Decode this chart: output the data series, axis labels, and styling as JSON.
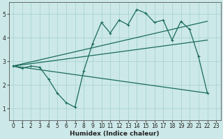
{
  "title": "",
  "xlabel": "Humidex (Indice chaleur)",
  "bg_color": "#cce8e8",
  "line_color": "#1a6b5a",
  "xlim": [
    -0.5,
    23.5
  ],
  "ylim": [
    0.5,
    5.5
  ],
  "xticks": [
    0,
    1,
    2,
    3,
    4,
    5,
    6,
    7,
    8,
    9,
    10,
    11,
    12,
    13,
    14,
    15,
    16,
    17,
    18,
    19,
    20,
    21,
    22,
    23
  ],
  "yticks": [
    1,
    2,
    3,
    4,
    5
  ],
  "grid_color": "#aad4d4",
  "lines": [
    {
      "x": [
        0,
        1,
        2,
        3,
        4,
        5,
        6,
        7,
        8,
        9,
        10,
        11,
        12,
        13,
        14,
        15,
        16,
        17,
        18,
        19,
        20,
        21,
        22
      ],
      "y": [
        2.8,
        2.7,
        2.8,
        2.75,
        2.25,
        1.65,
        1.25,
        1.05,
        2.6,
        3.75,
        4.65,
        4.2,
        4.75,
        4.55,
        5.2,
        5.05,
        4.65,
        4.75,
        3.9,
        4.7,
        4.35,
        3.2,
        1.65
      ],
      "marker": true
    },
    {
      "x": [
        0,
        22
      ],
      "y": [
        2.8,
        1.65
      ],
      "marker": false
    },
    {
      "x": [
        0,
        22
      ],
      "y": [
        2.8,
        3.9
      ],
      "marker": false
    },
    {
      "x": [
        0,
        22
      ],
      "y": [
        2.8,
        4.7
      ],
      "marker": false
    }
  ]
}
